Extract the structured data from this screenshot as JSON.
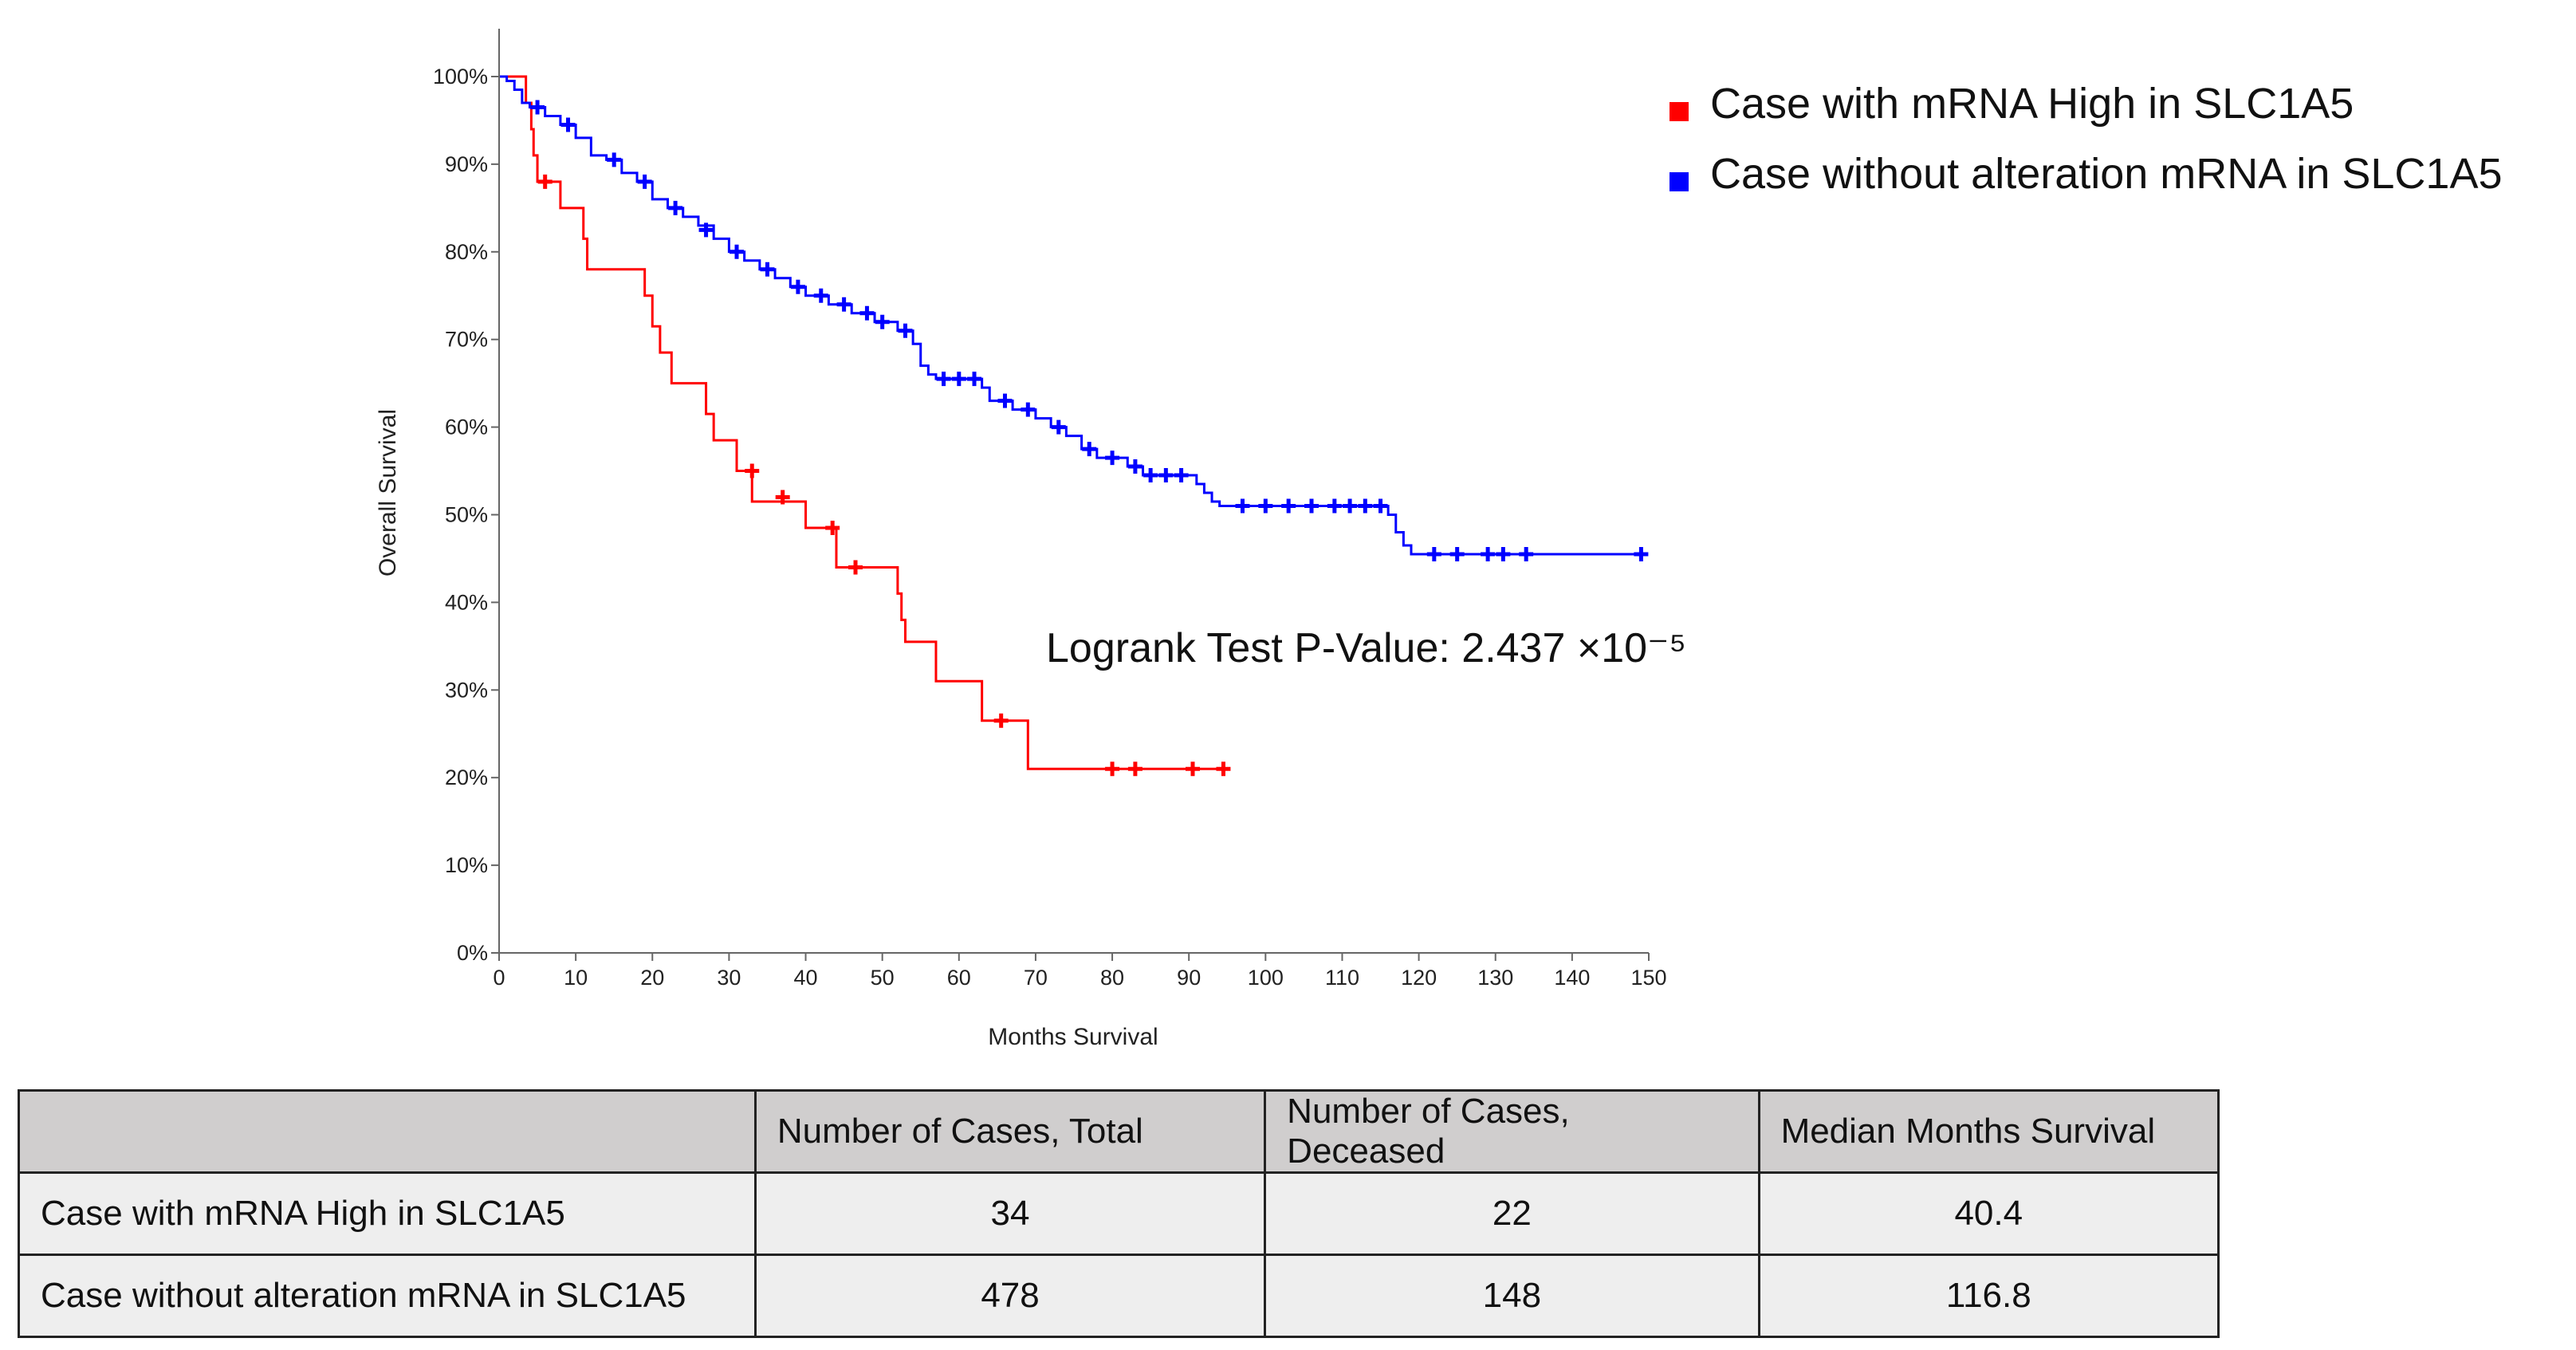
{
  "chart_data": {
    "type": "line",
    "subtype": "kaplan-meier",
    "xlabel": "Months Survival",
    "ylabel": "Overall Survival",
    "xlim": [
      0,
      150
    ],
    "ylim": [
      0,
      100
    ],
    "x_ticks": [
      0,
      10,
      20,
      30,
      40,
      50,
      60,
      70,
      80,
      90,
      100,
      110,
      120,
      130,
      140,
      150
    ],
    "y_ticks": [
      0,
      10,
      20,
      30,
      40,
      50,
      60,
      70,
      80,
      90,
      100
    ],
    "x_tick_labels": [
      "0",
      "10",
      "20",
      "30",
      "40",
      "50",
      "60",
      "70",
      "80",
      "90",
      "100",
      "110",
      "120",
      "130",
      "140",
      "150"
    ],
    "y_tick_labels": [
      "0%",
      "10%",
      "20%",
      "30%",
      "40%",
      "50%",
      "60%",
      "70%",
      "80%",
      "90%",
      "100%"
    ],
    "grid": false,
    "legend_position": "top-right",
    "annotation": "Logrank Test P-Value: 2.437 ×10⁻⁵",
    "series": [
      {
        "name": "Case with mRNA High in SLC1A5",
        "color": "#ff0000",
        "steps": [
          [
            0,
            100
          ],
          [
            3.5,
            97
          ],
          [
            4.2,
            94
          ],
          [
            4.5,
            91
          ],
          [
            5,
            88
          ],
          [
            8,
            85
          ],
          [
            11,
            81.5
          ],
          [
            11.5,
            78
          ],
          [
            19,
            75
          ],
          [
            20,
            71.5
          ],
          [
            21,
            68.5
          ],
          [
            22.5,
            65
          ],
          [
            27,
            61.5
          ],
          [
            28,
            58.5
          ],
          [
            31,
            55
          ],
          [
            33,
            51.5
          ],
          [
            40,
            48.5
          ],
          [
            44,
            44
          ],
          [
            52,
            41
          ],
          [
            52.5,
            38
          ],
          [
            53,
            35.5
          ],
          [
            57,
            31
          ],
          [
            63,
            26.5
          ],
          [
            69,
            21
          ]
        ],
        "end_x": 94.5,
        "censored": [
          [
            6,
            88
          ],
          [
            33,
            55
          ],
          [
            37,
            52
          ],
          [
            43.5,
            48.5
          ],
          [
            46.5,
            44
          ],
          [
            65.5,
            26.5
          ],
          [
            80,
            21
          ],
          [
            83,
            21
          ],
          [
            90.5,
            21
          ],
          [
            94.5,
            21
          ]
        ]
      },
      {
        "name": "Case without alteration mRNA in SLC1A5",
        "color": "#0000ff",
        "steps": [
          [
            0,
            100
          ],
          [
            1,
            99.5
          ],
          [
            2,
            98.5
          ],
          [
            3,
            97
          ],
          [
            4,
            96.5
          ],
          [
            6,
            95.5
          ],
          [
            8,
            94.5
          ],
          [
            10,
            93
          ],
          [
            12,
            91
          ],
          [
            14,
            90.5
          ],
          [
            16,
            89
          ],
          [
            18,
            88
          ],
          [
            20,
            86
          ],
          [
            22,
            85
          ],
          [
            24,
            84
          ],
          [
            26,
            83
          ],
          [
            28,
            81.5
          ],
          [
            30,
            80
          ],
          [
            32,
            79
          ],
          [
            34,
            78
          ],
          [
            36,
            77
          ],
          [
            38,
            76
          ],
          [
            40,
            75
          ],
          [
            43,
            74
          ],
          [
            46,
            73
          ],
          [
            49,
            72
          ],
          [
            52,
            71
          ],
          [
            54,
            69.5
          ],
          [
            55,
            67
          ],
          [
            56,
            66
          ],
          [
            57,
            65.5
          ],
          [
            63,
            64.5
          ],
          [
            64,
            63
          ],
          [
            67,
            62
          ],
          [
            70,
            61
          ],
          [
            72,
            60
          ],
          [
            74,
            59
          ],
          [
            76,
            57.5
          ],
          [
            78,
            56.5
          ],
          [
            82,
            55.5
          ],
          [
            84,
            54.5
          ],
          [
            91,
            53.5
          ],
          [
            92,
            52.5
          ],
          [
            93,
            51.5
          ],
          [
            94,
            51
          ],
          [
            116,
            50
          ],
          [
            117,
            48
          ],
          [
            118,
            46.5
          ],
          [
            119,
            45.5
          ]
        ],
        "end_x": 149,
        "censored": [
          [
            5,
            96.5
          ],
          [
            9,
            94.5
          ],
          [
            15,
            90.5
          ],
          [
            19,
            88
          ],
          [
            23,
            85
          ],
          [
            27,
            82.5
          ],
          [
            31,
            80
          ],
          [
            35,
            78
          ],
          [
            39,
            76
          ],
          [
            42,
            75
          ],
          [
            45,
            74
          ],
          [
            48,
            73
          ],
          [
            50,
            72
          ],
          [
            53,
            71
          ],
          [
            58,
            65.5
          ],
          [
            60,
            65.5
          ],
          [
            62,
            65.5
          ],
          [
            66,
            63
          ],
          [
            69,
            62
          ],
          [
            73,
            60
          ],
          [
            77,
            57.5
          ],
          [
            80,
            56.5
          ],
          [
            83,
            55.5
          ],
          [
            85,
            54.5
          ],
          [
            87,
            54.5
          ],
          [
            89,
            54.5
          ],
          [
            97,
            51
          ],
          [
            100,
            51
          ],
          [
            103,
            51
          ],
          [
            106,
            51
          ],
          [
            109,
            51
          ],
          [
            111,
            51
          ],
          [
            113,
            51
          ],
          [
            115,
            51
          ],
          [
            122,
            45.5
          ],
          [
            125,
            45.5
          ],
          [
            129,
            45.5
          ],
          [
            131,
            45.5
          ],
          [
            134,
            45.5
          ],
          [
            149,
            45.5
          ]
        ]
      }
    ]
  },
  "table": {
    "headers": [
      "",
      "Number of Cases, Total",
      "Number of Cases, Deceased",
      "Median Months Survival"
    ],
    "rows": [
      [
        "Case with mRNA High in SLC1A5",
        "34",
        "22",
        "40.4"
      ],
      [
        "Case without alteration mRNA in SLC1A5",
        "478",
        "148",
        "116.8"
      ]
    ]
  }
}
